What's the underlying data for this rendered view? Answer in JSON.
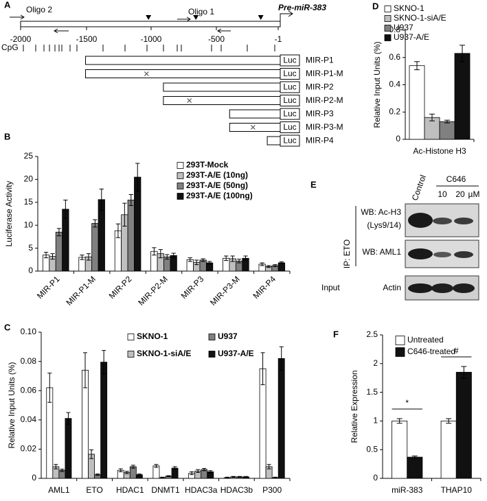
{
  "panel_a": {
    "label": "A",
    "oligo2": "Oligo 2",
    "oligo1": "Oligo 1",
    "gene": "Pre-miR-383",
    "positions": [
      "-2000",
      "-1500",
      "-1000",
      "-500",
      "-1"
    ],
    "cpg": "CpG",
    "luc": "Luc",
    "constructs": [
      "MIR-P1",
      "MIR-P1-M",
      "MIR-P2",
      "MIR-P2-M",
      "MIR-P3",
      "MIR-P3-M",
      "MIR-P4"
    ]
  },
  "panel_e": {
    "label": "E",
    "control": "Control",
    "treatment": "C646",
    "doses": [
      "10",
      "20",
      "µM"
    ],
    "ip": "IP: ETO",
    "rows": [
      "WB: Ac-H3",
      "(Lys9/14)",
      "WB: AML1"
    ],
    "input": "Input",
    "input_row": "Actin"
  },
  "chart_data": [
    {
      "type": "bar",
      "panel": "B",
      "ylabel": "Luciferase Activity",
      "categories": [
        "MIR-P1",
        "MIR-P1-M",
        "MIR-P2",
        "MIR-P2-M",
        "MIR-P3",
        "MIR-P3-M",
        "MIR-P4"
      ],
      "series": [
        {
          "name": "293T-Mock",
          "color": "#ffffff",
          "values": [
            3.5,
            3,
            8.8,
            4.3,
            2.5,
            2.8,
            1.5
          ],
          "errors": [
            0.6,
            0.5,
            1.5,
            0.8,
            0.4,
            0.5,
            0.3
          ]
        },
        {
          "name": "293T-A/E (10ng)",
          "color": "#bfbfbf",
          "values": [
            3.2,
            3.1,
            12.3,
            3.8,
            1.9,
            2.7,
            1.0
          ],
          "errors": [
            0.6,
            0.7,
            2.5,
            0.9,
            0.5,
            0.6,
            0.2
          ]
        },
        {
          "name": "293T-A/E (50ng)",
          "color": "#808080",
          "values": [
            8.5,
            10.4,
            15.5,
            3.1,
            2.4,
            2.2,
            1.2
          ],
          "errors": [
            0.8,
            0.8,
            1.2,
            0.5,
            0.3,
            0.4,
            0.2
          ]
        },
        {
          "name": "293T-A/E (100ng)",
          "color": "#111111",
          "values": [
            13.5,
            15.6,
            20.5,
            3.4,
            1.8,
            2.8,
            1.8
          ],
          "errors": [
            2,
            2.3,
            3,
            0.5,
            0.3,
            0.5,
            0.2
          ]
        }
      ],
      "ylim": [
        0,
        25
      ],
      "yticks": [
        0,
        5,
        10,
        15,
        20,
        25
      ]
    },
    {
      "type": "bar",
      "panel": "C",
      "ylabel": "Relative Input Units (%)",
      "categories": [
        "AML1",
        "ETO",
        "HDAC1",
        "DNMT1",
        "HDAC3a",
        "HDAC3b",
        "P300"
      ],
      "series": [
        {
          "name": "SKNO-1",
          "color": "#ffffff",
          "values": [
            0.062,
            0.074,
            0.0055,
            0.0085,
            0.0035,
            0.0005,
            0.075
          ],
          "errors": [
            0.01,
            0.012,
            0.001,
            0.001,
            0.001,
            0.0003,
            0.011
          ]
        },
        {
          "name": "SKNO-1-siA/E",
          "color": "#bfbfbf",
          "values": [
            0.008,
            0.0165,
            0.004,
            0.0005,
            0.005,
            0.001,
            0.008
          ],
          "errors": [
            0.0015,
            0.003,
            0.0008,
            0.0003,
            0.001,
            0.0003,
            0.0015
          ]
        },
        {
          "name": "U937",
          "color": "#808080",
          "values": [
            0.0055,
            0.0025,
            0.008,
            0.0015,
            0.006,
            0.001,
            0.0005
          ],
          "errors": [
            0.0008,
            0.0005,
            0.001,
            0.0003,
            0.0008,
            0.0003,
            0.0003
          ]
        },
        {
          "name": "U937-A/E",
          "color": "#111111",
          "values": [
            0.041,
            0.0795,
            0.0025,
            0.007,
            0.0045,
            0.001,
            0.082
          ],
          "errors": [
            0.004,
            0.008,
            0.0005,
            0.001,
            0.0008,
            0.0003,
            0.008
          ]
        }
      ],
      "ylim": [
        0,
        0.1
      ],
      "yticks": [
        0,
        0.02,
        0.04,
        0.06,
        0.08,
        {
          "value": 0.1,
          "label": "0.10"
        }
      ]
    },
    {
      "type": "bar",
      "panel": "D",
      "ylabel": "Relative Input Units (%)",
      "categories": [
        "Ac-Histone H3"
      ],
      "series": [
        {
          "name": "SKNO-1",
          "color": "#ffffff",
          "values": [
            0.54
          ],
          "errors": [
            0.03
          ]
        },
        {
          "name": "SKNO-1-siA/E",
          "color": "#bfbfbf",
          "values": [
            0.16
          ],
          "errors": [
            0.025
          ]
        },
        {
          "name": "U937",
          "color": "#808080",
          "values": [
            0.13
          ],
          "errors": [
            0.01
          ]
        },
        {
          "name": "U937-A/E",
          "color": "#111111",
          "values": [
            0.63
          ],
          "errors": [
            0.06
          ]
        }
      ],
      "ylim": [
        0,
        0.8
      ],
      "yticks": [
        0,
        0.2,
        0.4,
        0.6,
        0.8
      ]
    },
    {
      "type": "bar",
      "panel": "F",
      "ylabel": "Relative Expression",
      "categories": [
        "miR-383",
        "THAP10"
      ],
      "series": [
        {
          "name": "Untreated",
          "color": "#ffffff",
          "values": [
            1.0,
            1.0
          ],
          "errors": [
            0.04,
            0.04
          ]
        },
        {
          "name": "C646-treated",
          "color": "#111111",
          "values": [
            0.37,
            1.85
          ],
          "errors": [
            0.02,
            0.1
          ]
        }
      ],
      "annotations": [
        "*",
        "#"
      ],
      "ylim": [
        0,
        2.5
      ],
      "yticks": [
        0,
        0.5,
        1,
        1.5,
        2,
        2.5
      ]
    }
  ]
}
